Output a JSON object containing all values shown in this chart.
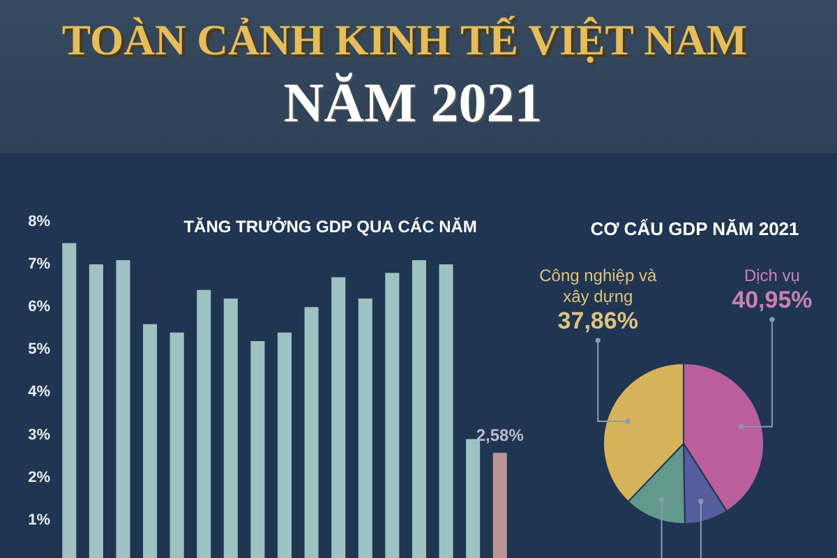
{
  "chart_data": [
    {
      "type": "other",
      "title": "TOÀN CẢNH KINH TẾ VIỆT NAM",
      "subtitle": "NĂM 2021"
    },
    {
      "type": "bar",
      "title": "TĂNG TRƯỞNG GDP QUA CÁC NĂM",
      "categories": [
        null,
        null,
        null,
        null,
        null,
        null,
        null,
        null,
        null,
        null,
        null,
        null,
        null,
        null,
        null,
        null,
        null
      ],
      "values": [
        7.5,
        7.0,
        7.1,
        5.6,
        5.4,
        6.4,
        6.2,
        5.2,
        5.4,
        6.0,
        6.7,
        6.2,
        6.8,
        7.1,
        7.0,
        2.9,
        2.58
      ],
      "colors": [
        "#9ec2c1",
        "#9ec2c1",
        "#9ec2c1",
        "#9ec2c1",
        "#9ec2c1",
        "#9ec2c1",
        "#9ec2c1",
        "#9ec2c1",
        "#9ec2c1",
        "#9ec2c1",
        "#9ec2c1",
        "#9ec2c1",
        "#9ec2c1",
        "#9ec2c1",
        "#9ec2c1",
        "#9ec2c1",
        "#b99593"
      ],
      "ylim": [
        0,
        8
      ],
      "yticks": [
        {
          "value": 1,
          "label": "1%"
        },
        {
          "value": 2,
          "label": "2%"
        },
        {
          "value": 3,
          "label": "3%"
        },
        {
          "value": 4,
          "label": "4%"
        },
        {
          "value": 5,
          "label": "5%"
        },
        {
          "value": 6,
          "label": "6%"
        },
        {
          "value": 7,
          "label": "7%"
        },
        {
          "value": 8,
          "label": "8%"
        }
      ],
      "value_labels": [
        null,
        null,
        null,
        null,
        null,
        null,
        null,
        null,
        null,
        null,
        null,
        null,
        null,
        null,
        null,
        null,
        "2,58%"
      ]
    },
    {
      "type": "pie",
      "title": "CƠ CẤU GDP NĂM 2021",
      "categories": [
        "Dịch vụ",
        null,
        null,
        "Công nghiệp và xây dựng"
      ],
      "values": [
        40.95,
        8.8,
        12.4,
        37.86
      ],
      "colors": [
        "#b95f9c",
        "#565d9c",
        "#62998c",
        "#d6b25a"
      ],
      "value_labels": [
        "40,95%",
        null,
        null,
        "37,86%"
      ]
    }
  ]
}
